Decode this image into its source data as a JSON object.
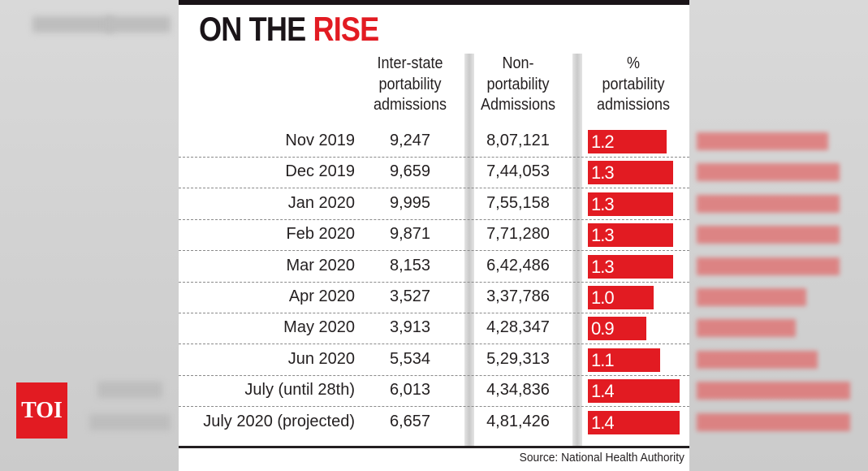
{
  "chart_data": {
    "type": "table",
    "title_parts": [
      "ON THE ",
      "RISE"
    ],
    "columns": [
      "Inter-state portability admissions",
      "Non-portability Admissions",
      "% portability admissions"
    ],
    "header_lines": [
      [
        "Inter-state",
        "portability",
        "admissions"
      ],
      [
        "Non-",
        "portability",
        "Admissions"
      ],
      [
        "%",
        "portability",
        "admissions"
      ]
    ],
    "categories": [
      "Nov 2019",
      "Dec 2019",
      "Jan 2020",
      "Feb 2020",
      "Mar 2020",
      "Apr 2020",
      "May 2020",
      "Jun 2020",
      "July (until 28th)",
      "July 2020 (projected)"
    ],
    "series": [
      {
        "name": "Inter-state portability admissions",
        "values": [
          "9,247",
          "9,659",
          "9,995",
          "9,871",
          "8,153",
          "3,527",
          "3,913",
          "5,534",
          "6,013",
          "6,657"
        ]
      },
      {
        "name": "Non-portability Admissions",
        "values": [
          "8,07,121",
          "7,44,053",
          "7,55,158",
          "7,71,280",
          "6,42,486",
          "3,37,786",
          "4,28,347",
          "5,29,313",
          "4,34,836",
          "4,81,426"
        ]
      },
      {
        "name": "% portability admissions",
        "values": [
          1.2,
          1.3,
          1.3,
          1.3,
          1.3,
          1.0,
          0.9,
          1.1,
          1.4,
          1.4
        ],
        "labels": [
          "1.2",
          "1.3",
          "1.3",
          "1.3",
          "1.3",
          "1.0",
          "0.9",
          "1.1",
          "1.4",
          "1.4"
        ]
      }
    ],
    "source": "Source: National Health Authority",
    "bar_color": "#e21b22"
  },
  "watermark": "TOI"
}
